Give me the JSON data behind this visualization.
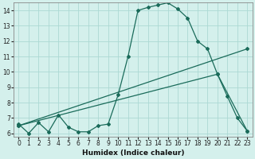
{
  "xlabel": "Humidex (Indice chaleur)",
  "bg_color": "#d4f0ec",
  "grid_color": "#acd9d4",
  "line_color": "#1a6b5a",
  "xlim": [
    -0.5,
    23.5
  ],
  "ylim": [
    5.8,
    14.5
  ],
  "xticks": [
    0,
    1,
    2,
    3,
    4,
    5,
    6,
    7,
    8,
    9,
    10,
    11,
    12,
    13,
    14,
    15,
    16,
    17,
    18,
    19,
    20,
    21,
    22,
    23
  ],
  "yticks": [
    6,
    7,
    8,
    9,
    10,
    11,
    12,
    13,
    14
  ],
  "line1_x": [
    0,
    1,
    2,
    3,
    4,
    5,
    6,
    7,
    8,
    9,
    10,
    11,
    12,
    13,
    14,
    15,
    16,
    17,
    18,
    19,
    20,
    21,
    22,
    23
  ],
  "line1_y": [
    6.6,
    6.0,
    6.7,
    6.1,
    7.2,
    6.4,
    6.1,
    6.1,
    6.5,
    6.6,
    8.5,
    11.0,
    14.0,
    14.2,
    14.35,
    14.5,
    14.1,
    13.5,
    12.0,
    11.5,
    9.85,
    8.4,
    7.0,
    6.15
  ],
  "line2_x": [
    0,
    23
  ],
  "line2_y": [
    6.5,
    11.5
  ],
  "line3_x": [
    0,
    20,
    23
  ],
  "line3_y": [
    6.5,
    9.85,
    6.15
  ]
}
